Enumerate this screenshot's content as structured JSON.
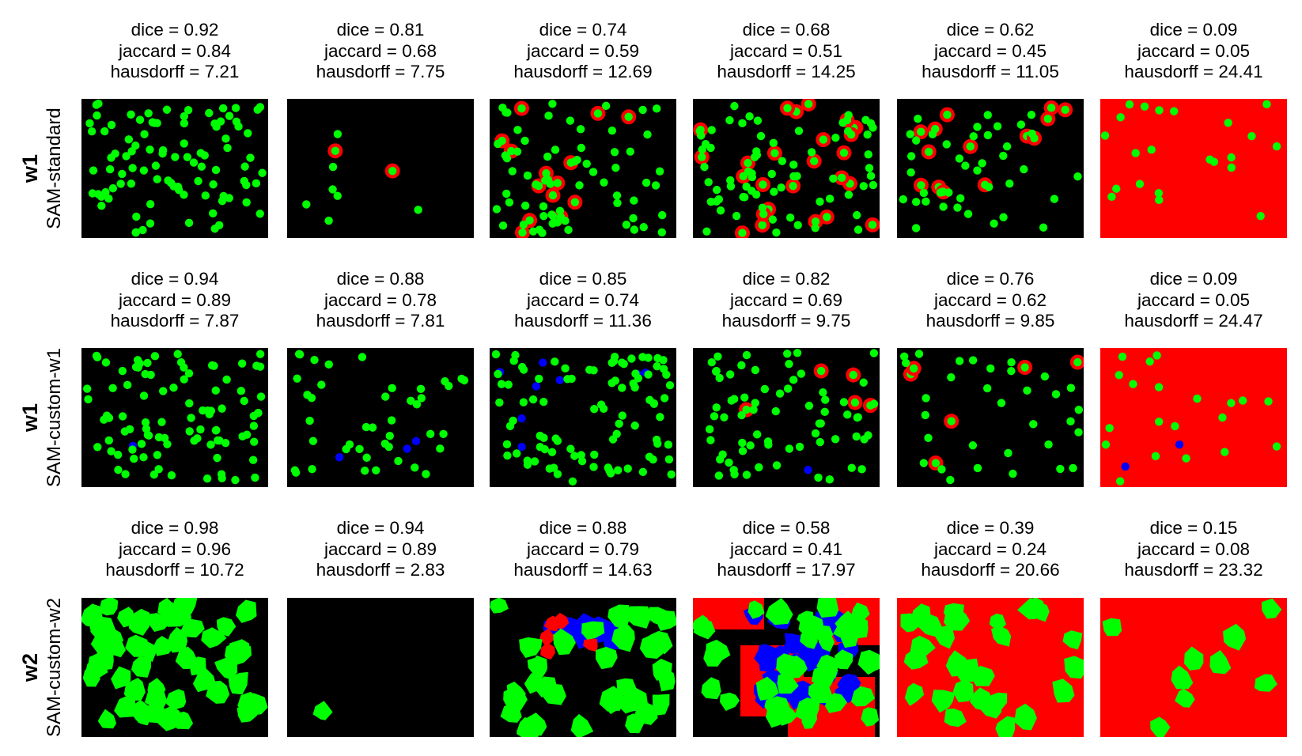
{
  "rows": [
    {
      "weight": "w1",
      "model": "SAM-standard",
      "panels": [
        {
          "dice": "dice = 0.92",
          "jaccard": "jaccard = 0.84",
          "hausdorff": "hausdorff = 7.21",
          "bg": "black",
          "style": "dots",
          "n": 95,
          "red": 0,
          "blue": 0,
          "seed": 11
        },
        {
          "dice": "dice = 0.81",
          "jaccard": "jaccard = 0.68",
          "hausdorff": "hausdorff = 7.75",
          "bg": "black",
          "style": "dots",
          "n": 9,
          "red": 2,
          "blue": 0,
          "seed": 23
        },
        {
          "dice": "dice = 0.74",
          "jaccard": "jaccard = 0.59",
          "hausdorff": "hausdorff = 12.69",
          "bg": "black",
          "style": "dots",
          "n": 80,
          "red": 14,
          "blue": 0,
          "seed": 37
        },
        {
          "dice": "dice = 0.68",
          "jaccard": "jaccard = 0.51",
          "hausdorff": "hausdorff = 14.25",
          "bg": "black",
          "style": "dots",
          "n": 95,
          "red": 26,
          "blue": 0,
          "seed": 41
        },
        {
          "dice": "dice = 0.62",
          "jaccard": "jaccard = 0.45",
          "hausdorff": "hausdorff = 11.05",
          "bg": "black",
          "style": "dots",
          "n": 55,
          "red": 14,
          "blue": 0,
          "seed": 53
        },
        {
          "dice": "dice = 0.09",
          "jaccard": "jaccard = 0.05",
          "hausdorff": "hausdorff = 24.41",
          "bg": "red",
          "style": "dots",
          "n": 22,
          "red": 2,
          "blue": 0,
          "seed": 67
        }
      ]
    },
    {
      "weight": "w1",
      "model": "SAM-custom-w1",
      "panels": [
        {
          "dice": "dice = 0.94",
          "jaccard": "jaccard = 0.89",
          "hausdorff": "hausdorff = 7.87",
          "bg": "black",
          "style": "dots",
          "n": 95,
          "red": 0,
          "blue": 1,
          "seed": 71
        },
        {
          "dice": "dice = 0.88",
          "jaccard": "jaccard = 0.78",
          "hausdorff": "hausdorff = 7.81",
          "bg": "black",
          "style": "dots",
          "n": 45,
          "red": 0,
          "blue": 3,
          "seed": 83
        },
        {
          "dice": "dice = 0.85",
          "jaccard": "jaccard = 0.74",
          "hausdorff": "hausdorff = 11.36",
          "bg": "black",
          "style": "dots",
          "n": 100,
          "red": 0,
          "blue": 8,
          "seed": 97
        },
        {
          "dice": "dice = 0.82",
          "jaccard": "jaccard = 0.69",
          "hausdorff": "hausdorff = 9.75",
          "bg": "black",
          "style": "dots",
          "n": 75,
          "red": 5,
          "blue": 1,
          "seed": 101
        },
        {
          "dice": "dice = 0.76",
          "jaccard": "jaccard = 0.62",
          "hausdorff": "hausdorff = 9.85",
          "bg": "black",
          "style": "dots",
          "n": 38,
          "red": 6,
          "blue": 0,
          "seed": 113
        },
        {
          "dice": "dice = 0.09",
          "jaccard": "jaccard = 0.05",
          "hausdorff": "hausdorff = 24.47",
          "bg": "red",
          "style": "dots",
          "n": 22,
          "red": 4,
          "blue": 2,
          "seed": 127
        }
      ]
    },
    {
      "weight": "w2",
      "model": "SAM-custom-w2",
      "panels": [
        {
          "dice": "dice = 0.98",
          "jaccard": "jaccard = 0.96",
          "hausdorff": "hausdorff = 10.72",
          "bg": "black",
          "style": "blobs",
          "n": 55,
          "red": 0,
          "blue": 0,
          "seed": 131
        },
        {
          "dice": "dice = 0.94",
          "jaccard": "jaccard = 0.89",
          "hausdorff": "hausdorff = 2.83",
          "bg": "black",
          "style": "single",
          "n": 1,
          "red": 0,
          "blue": 0,
          "seed": 139
        },
        {
          "dice": "dice = 0.88",
          "jaccard": "jaccard = 0.79",
          "hausdorff": "hausdorff = 14.63",
          "bg": "black",
          "style": "blobs",
          "n": 35,
          "red": 6,
          "blue": 14,
          "seed": 149
        },
        {
          "dice": "dice = 0.58",
          "jaccard": "jaccard = 0.41",
          "hausdorff": "hausdorff = 17.97",
          "bg": "mixed",
          "style": "blobs",
          "n": 40,
          "red": 0,
          "blue": 30,
          "seed": 157
        },
        {
          "dice": "dice = 0.39",
          "jaccard": "jaccard = 0.24",
          "hausdorff": "hausdorff = 20.66",
          "bg": "red",
          "style": "blobs",
          "n": 28,
          "red": 0,
          "blue": 0,
          "seed": 163
        },
        {
          "dice": "dice = 0.15",
          "jaccard": "jaccard = 0.08",
          "hausdorff": "hausdorff = 23.32",
          "bg": "red",
          "style": "blobs",
          "n": 9,
          "red": 0,
          "blue": 0,
          "seed": 173
        }
      ]
    }
  ],
  "colors": {
    "green": "#00ff00",
    "red": "#ff0000",
    "blue": "#0000ff",
    "black": "#000000",
    "panel_bg": "#000000"
  }
}
